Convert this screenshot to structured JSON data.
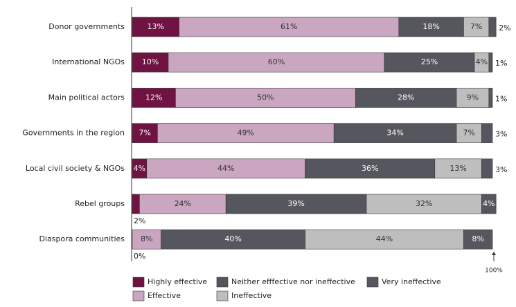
{
  "chart_data": {
    "type": "stacked-bar-horizontal",
    "categories": [
      "Donor governments",
      "International NGOs",
      "Main political actors",
      "Governments in the region",
      "Local civil society & NGOs",
      "Rebel groups",
      "Diaspora communities"
    ],
    "series": [
      {
        "name": "Highly effective",
        "color": "#6e1342",
        "values": [
          13,
          10,
          12,
          7,
          4,
          2,
          0
        ],
        "value_labels": [
          "13%",
          "10%",
          "12%",
          "7%",
          "4%",
          "2%",
          "0%"
        ]
      },
      {
        "name": "Effective",
        "color": "#cba6c1",
        "values": [
          61,
          60,
          50,
          49,
          44,
          24,
          8
        ],
        "value_labels": [
          "61%",
          "60%",
          "50%",
          "49%",
          "44%",
          "24%",
          "8%"
        ]
      },
      {
        "name": "Neither efffective nor ineffective",
        "color": "#56565e",
        "values": [
          18,
          25,
          28,
          34,
          36,
          39,
          40
        ],
        "value_labels": [
          "18%",
          "25%",
          "28%",
          "34%",
          "36%",
          "39%",
          "40%"
        ]
      },
      {
        "name": "Ineffective",
        "color": "#bebebe",
        "values": [
          7,
          4,
          9,
          7,
          13,
          32,
          44
        ],
        "value_labels": [
          "7%",
          "4%",
          "9%",
          "7%",
          "13%",
          "32%",
          "44%"
        ]
      },
      {
        "name": "Very ineffective",
        "color": "#56565e",
        "values": [
          2,
          1,
          1,
          3,
          3,
          4,
          8
        ],
        "value_labels": [
          "2%",
          "1%",
          "1%",
          "3%",
          "3%",
          "4%",
          "8%"
        ]
      }
    ],
    "xlim": [
      0,
      100
    ],
    "xticks": [
      {
        "value": 100,
        "label": "100%"
      }
    ]
  }
}
